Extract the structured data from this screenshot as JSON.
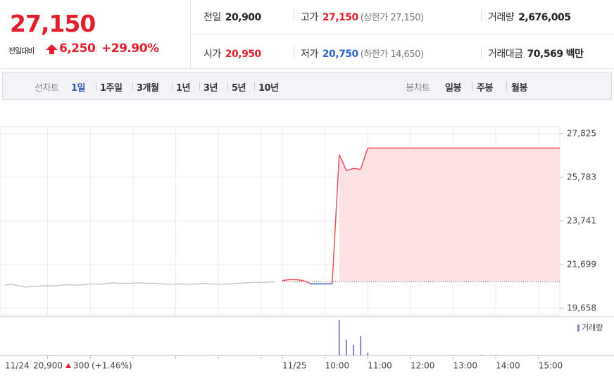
{
  "header": {
    "price": "27,150",
    "change_label": "전일대비",
    "change": "6,250",
    "change_pct": "+29.90%",
    "stats": [
      {
        "label": "전일",
        "value": "20,900"
      },
      {
        "label": "고가",
        "value": "27,150",
        "note": "(상한가 27,150)"
      },
      {
        "label": "거래량",
        "value": "2,676,005"
      },
      {
        "label": "시가",
        "value": "20,950"
      },
      {
        "label": "저가",
        "value": "20,750",
        "note": "(하한가 14,650)"
      },
      {
        "label": "거래대금",
        "value": "70,569",
        "unit": "백만"
      }
    ]
  },
  "toolbar": {
    "line_label": "선차트",
    "line_periods": [
      "1일",
      "1주일",
      "3개월",
      "1년",
      "3년",
      "5년",
      "10년"
    ],
    "candle_label": "봉차트",
    "candle_periods": [
      "일봉",
      "주봉",
      "월봉"
    ]
  },
  "chart_data": {
    "type": "line",
    "categories": [
      "11/24",
      null,
      null,
      null,
      null,
      null,
      null,
      null,
      null,
      null,
      null,
      null,
      null,
      null,
      null,
      null,
      null,
      null,
      null,
      null,
      null,
      null,
      null,
      null,
      null,
      null,
      null,
      null,
      null,
      null,
      null,
      null,
      null,
      null,
      null,
      null,
      null,
      null,
      null,
      "11/25",
      null,
      null,
      null,
      null,
      null,
      "10:00",
      null,
      null,
      null,
      null,
      null,
      "11:00",
      null,
      null,
      null,
      null,
      null,
      "12:00",
      null,
      null,
      null,
      null,
      null,
      "13:00",
      null,
      null,
      null,
      null,
      null,
      "14:00",
      null,
      null,
      null,
      null,
      null,
      "15:00",
      null,
      null,
      null
    ],
    "series": [
      {
        "color": "#c8c8c8",
        "values": [
          20750,
          20780,
          20700,
          20650,
          20680,
          20700,
          20720,
          20700,
          20750,
          20760,
          20740,
          20760,
          20800,
          20780,
          20800,
          20850,
          20830,
          20820,
          20830,
          20850,
          20820,
          20830,
          20800,
          20780,
          20790,
          20800,
          20780,
          20800,
          20820,
          20800,
          20780,
          20790,
          20810,
          20830,
          20850,
          20870,
          20860,
          20880,
          20900,
          null,
          null,
          null,
          null,
          null,
          null,
          null,
          null,
          null,
          null,
          null,
          null,
          null,
          null,
          null,
          null,
          null,
          null,
          null,
          null,
          null,
          null,
          null,
          null,
          null,
          null,
          null,
          null,
          null,
          null,
          null,
          null,
          null,
          null,
          null,
          null,
          null,
          null,
          null,
          null
        ]
      },
      {
        "up_color": "#ee4d5a",
        "down_color": "#2f63c9",
        "area_color": "#fde1e3",
        "values": [
          null,
          null,
          null,
          null,
          null,
          null,
          null,
          null,
          null,
          null,
          null,
          null,
          null,
          null,
          null,
          null,
          null,
          null,
          null,
          null,
          null,
          null,
          null,
          null,
          null,
          null,
          null,
          null,
          null,
          null,
          null,
          null,
          null,
          null,
          null,
          null,
          null,
          null,
          null,
          20950,
          21000,
          21000,
          20950,
          20800,
          20800,
          20800,
          20800,
          26850,
          26100,
          26200,
          26150,
          27150,
          27150,
          27150,
          27150,
          27150,
          27150,
          27150,
          27150,
          27150,
          27150,
          27150,
          27150,
          27150,
          27150,
          27150,
          27150,
          27150,
          27150,
          27150,
          27150,
          27150,
          27150,
          27150,
          27150,
          27150,
          27150,
          27150,
          27150
        ]
      }
    ],
    "baseline": 20900,
    "ylim": [
      19330,
      28150
    ],
    "yticks": [
      {
        "value": 19658,
        "label": "19,658"
      },
      {
        "value": 21699,
        "label": "21,699"
      },
      {
        "value": 23741,
        "label": "23,741"
      },
      {
        "value": 25783,
        "label": "25,783"
      },
      {
        "value": 27825,
        "label": "27,825"
      }
    ],
    "grid": true,
    "prev_day": {
      "close": "20,900",
      "change": "300",
      "change_pct": "(+1.46%)"
    },
    "volume": {
      "name": "거래량",
      "color": "#8b80c8",
      "ylim": [
        0,
        100
      ],
      "values": [
        null,
        null,
        null,
        null,
        null,
        null,
        null,
        null,
        null,
        null,
        null,
        null,
        null,
        null,
        null,
        null,
        null,
        null,
        null,
        null,
        null,
        null,
        null,
        null,
        null,
        null,
        null,
        null,
        null,
        null,
        null,
        null,
        null,
        null,
        null,
        null,
        null,
        null,
        null,
        0,
        0,
        0,
        0,
        0,
        0,
        0,
        0,
        100,
        45,
        30,
        55,
        8,
        0,
        0,
        0,
        0,
        0,
        0,
        0,
        0,
        0,
        0,
        0,
        0,
        0,
        0,
        0,
        2,
        0,
        0,
        0,
        0,
        0,
        0,
        0,
        0,
        0,
        0,
        0
      ]
    }
  }
}
